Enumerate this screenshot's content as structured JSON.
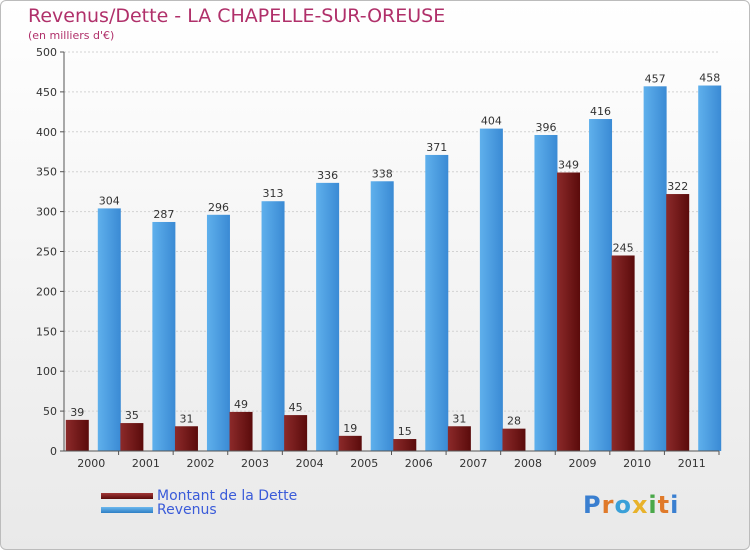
{
  "title": "Revenus/Dette - LA CHAPELLE-SUR-OREUSE",
  "subtitle": "(en milliers d'€)",
  "chart_data": {
    "type": "bar",
    "categories": [
      "2000",
      "2001",
      "2002",
      "2003",
      "2004",
      "2005",
      "2006",
      "2007",
      "2008",
      "2009",
      "2010",
      "2011"
    ],
    "series": [
      {
        "name": "Montant de la Dette",
        "color": "#7a1b1b",
        "values": [
          39,
          35,
          31,
          49,
          45,
          19,
          15,
          31,
          28,
          349,
          245,
          322
        ]
      },
      {
        "name": "Revenus",
        "color": "#4a9de0",
        "values": [
          304,
          287,
          296,
          313,
          336,
          338,
          371,
          404,
          396,
          416,
          457,
          458
        ]
      }
    ],
    "ylim": [
      0,
      500
    ],
    "yticks": [
      0,
      50,
      100,
      150,
      200,
      250,
      300,
      350,
      400,
      450,
      500
    ],
    "grid": true,
    "legend_position": "bottom-left"
  },
  "logo": {
    "text": "Proxiti"
  }
}
